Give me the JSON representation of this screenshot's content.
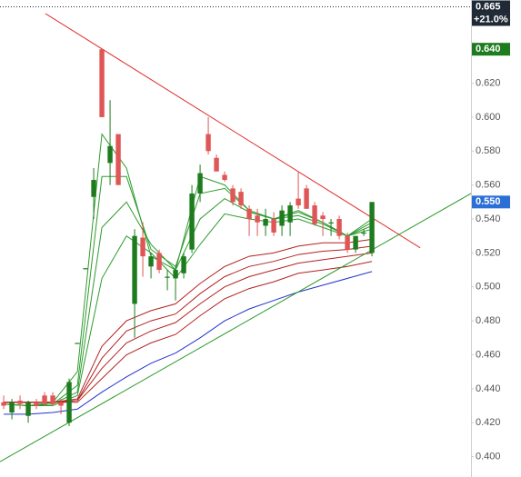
{
  "chart_data": {
    "type": "candlestick",
    "up_color": "#1e7b1e",
    "down_color": "#e05555",
    "xlim": [
      -0.45,
      57.1
    ],
    "ylim": [
      0.388,
      0.669
    ],
    "yticks": [
      {
        "value": 0.4,
        "label": "0.400"
      },
      {
        "value": 0.42,
        "label": "0.420"
      },
      {
        "value": 0.44,
        "label": "0.440"
      },
      {
        "value": 0.46,
        "label": "0.460"
      },
      {
        "value": 0.48,
        "label": "0.480"
      },
      {
        "value": 0.5,
        "label": "0.500"
      },
      {
        "value": 0.52,
        "label": "0.520"
      },
      {
        "value": 0.54,
        "label": "0.540"
      },
      {
        "value": 0.56,
        "label": "0.560"
      },
      {
        "value": 0.58,
        "label": "0.580"
      },
      {
        "value": 0.6,
        "label": "0.600"
      },
      {
        "value": 0.62,
        "label": "0.620"
      }
    ],
    "open": [
      0.432,
      0.426,
      0.433,
      0.424,
      0.432,
      0.436,
      0.436,
      0.432,
      0.42,
      0.467,
      0.511,
      0.553,
      0.64,
      0.573,
      0.59,
      null,
      0.49,
      0.529,
      0.512,
      0.52,
      0.506,
      0.505,
      0.508,
      0.522,
      0.555,
      0.59,
      0.576,
      0.566,
      0.558,
      0.556,
      0.546,
      0.542,
      0.536,
      0.54,
      0.536,
      0.538,
      0.552,
      0.558,
      0.548,
      0.542,
      0.538,
      0.54,
      0.53,
      0.522,
      0.532,
      0.52
    ],
    "high": [
      0.436,
      0.434,
      0.436,
      0.433,
      0.434,
      0.438,
      0.438,
      0.434,
      0.446,
      0.467,
      0.511,
      0.57,
      0.64,
      0.61,
      0.59,
      null,
      0.534,
      0.538,
      0.52,
      0.522,
      0.51,
      0.512,
      0.52,
      0.56,
      0.572,
      0.6,
      0.578,
      0.568,
      0.56,
      0.558,
      0.548,
      0.546,
      0.546,
      0.544,
      0.548,
      0.55,
      0.568,
      0.56,
      0.55,
      0.544,
      0.54,
      0.542,
      0.532,
      0.53,
      0.534,
      0.55
    ],
    "low": [
      0.428,
      0.422,
      0.428,
      0.42,
      0.428,
      0.43,
      0.43,
      0.425,
      0.418,
      0.467,
      0.511,
      0.54,
      0.6,
      0.56,
      0.56,
      null,
      0.47,
      0.506,
      0.505,
      0.508,
      0.498,
      0.492,
      0.505,
      0.52,
      0.55,
      0.578,
      0.568,
      0.562,
      0.548,
      0.546,
      0.53,
      0.53,
      0.53,
      0.53,
      0.53,
      0.53,
      0.546,
      0.546,
      0.536,
      0.53,
      0.53,
      0.528,
      0.52,
      0.52,
      0.53,
      0.518
    ],
    "close": [
      0.43,
      0.432,
      0.431,
      0.432,
      0.43,
      0.431,
      0.431,
      0.43,
      0.444,
      0.467,
      0.511,
      0.563,
      0.6,
      0.583,
      0.56,
      null,
      0.53,
      0.518,
      0.518,
      0.51,
      0.506,
      0.51,
      0.518,
      0.555,
      0.567,
      0.58,
      0.568,
      0.563,
      0.55,
      0.548,
      0.54,
      0.538,
      0.54,
      0.532,
      0.545,
      0.548,
      0.548,
      0.546,
      0.537,
      0.54,
      0.538,
      0.53,
      0.522,
      0.53,
      0.532,
      0.55
    ],
    "overlays": {
      "x": [
        0,
        3,
        6,
        9,
        12,
        15,
        18,
        21,
        24,
        27,
        30,
        33,
        36,
        39,
        42,
        45
      ],
      "series": [
        {
          "color": "#2e9b2e",
          "values": [
            0.431,
            0.43,
            0.432,
            0.45,
            0.59,
            0.57,
            0.518,
            0.51,
            0.565,
            0.56,
            0.545,
            0.54,
            0.545,
            0.538,
            0.53,
            0.54
          ]
        },
        {
          "color": "#2e9b2e",
          "values": [
            0.431,
            0.43,
            0.431,
            0.442,
            0.565,
            0.565,
            0.522,
            0.512,
            0.555,
            0.558,
            0.545,
            0.54,
            0.544,
            0.538,
            0.53,
            0.538
          ]
        },
        {
          "color": "#2e9b2e",
          "values": [
            0.431,
            0.43,
            0.431,
            0.438,
            0.535,
            0.55,
            0.525,
            0.51,
            0.54,
            0.552,
            0.544,
            0.54,
            0.542,
            0.537,
            0.53,
            0.536
          ]
        },
        {
          "color": "#2e9b2e",
          "values": [
            0.431,
            0.43,
            0.43,
            0.436,
            0.505,
            0.53,
            0.52,
            0.505,
            0.525,
            0.543,
            0.54,
            0.538,
            0.54,
            0.535,
            0.53,
            0.534
          ]
        },
        {
          "color": "#b22222",
          "values": [
            0.432,
            0.432,
            0.432,
            0.434,
            0.465,
            0.48,
            0.486,
            0.49,
            0.502,
            0.512,
            0.518,
            0.52,
            0.524,
            0.526,
            0.526,
            0.528
          ]
        },
        {
          "color": "#b22222",
          "values": [
            0.432,
            0.432,
            0.432,
            0.433,
            0.458,
            0.474,
            0.48,
            0.484,
            0.496,
            0.506,
            0.512,
            0.515,
            0.519,
            0.521,
            0.522,
            0.524
          ]
        },
        {
          "color": "#b22222",
          "values": [
            0.432,
            0.432,
            0.432,
            0.433,
            0.452,
            0.467,
            0.474,
            0.479,
            0.49,
            0.5,
            0.506,
            0.51,
            0.514,
            0.516,
            0.518,
            0.52
          ]
        },
        {
          "color": "#b22222",
          "values": [
            0.432,
            0.432,
            0.432,
            0.432,
            0.446,
            0.46,
            0.467,
            0.472,
            0.483,
            0.493,
            0.499,
            0.503,
            0.508,
            0.51,
            0.512,
            0.515
          ]
        },
        {
          "color": "#2233cc",
          "values": [
            0.425,
            0.425,
            0.426,
            0.428,
            0.438,
            0.447,
            0.455,
            0.461,
            0.47,
            0.48,
            0.487,
            0.492,
            0.497,
            0.501,
            0.505,
            0.509
          ]
        }
      ]
    },
    "trendlines": [
      {
        "color": "#e03030",
        "x": [
          5.1,
          50.9
        ],
        "values": [
          0.661,
          0.523
        ]
      },
      {
        "color": "#2e9b2e",
        "x": [
          -0.45,
          57.1
        ],
        "values": [
          0.397,
          0.555
        ]
      }
    ],
    "levels": [
      {
        "value": 0.665,
        "label": "0.665",
        "color": "#1f2a36",
        "dotted": true
      },
      {
        "value": 0.64,
        "label": "0.640",
        "color": "#1e7b1e"
      },
      {
        "value": 0.55,
        "label": "0.550",
        "color": "#2b6fd6"
      }
    ],
    "change_label": "+21.0%"
  }
}
